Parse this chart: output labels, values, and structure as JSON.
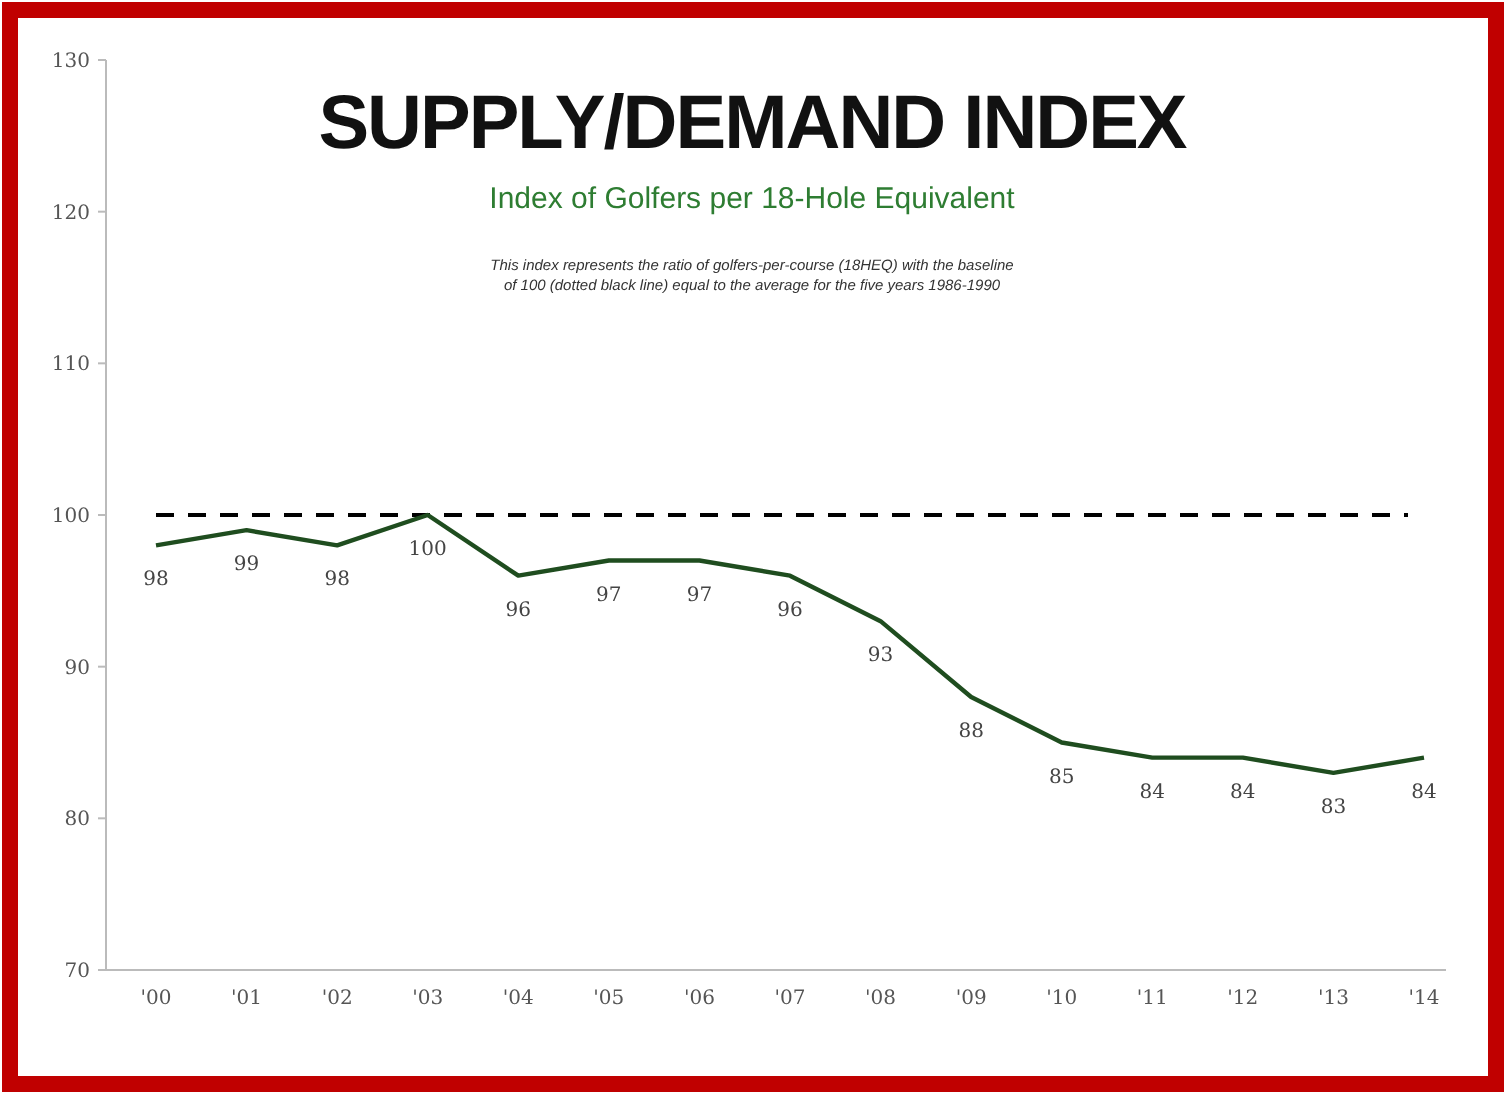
{
  "chart_data": {
    "type": "line",
    "title": "SUPPLY/DEMAND INDEX",
    "subtitle": "Index of Golfers per 18-Hole Equivalent",
    "annotations": [
      "This index represents the ratio of golfers-per-course (18HEQ) with the baseline\nof 100 (dotted black line) equal to the average for the five years 1986-1990"
    ],
    "categories": [
      "'00",
      "'01",
      "'02",
      "'03",
      "'04",
      "'05",
      "'06",
      "'07",
      "'08",
      "'09",
      "'10",
      "'11",
      "'12",
      "'13",
      "'14"
    ],
    "series": [
      {
        "color": "#1f4d1f",
        "values": [
          98,
          99,
          98,
          100,
          96,
          97,
          97,
          96,
          93,
          88,
          85,
          84,
          84,
          83,
          84
        ]
      }
    ],
    "data_labels": true,
    "ylim": [
      70,
      130
    ],
    "yticks": [
      70,
      80,
      90,
      100,
      110,
      120,
      130
    ],
    "ref_lines": [
      {
        "axis": "y",
        "value": 100,
        "color": "#000000",
        "line_style": "dashed"
      }
    ],
    "grid": false,
    "marker": "none",
    "line_style": "solid"
  }
}
